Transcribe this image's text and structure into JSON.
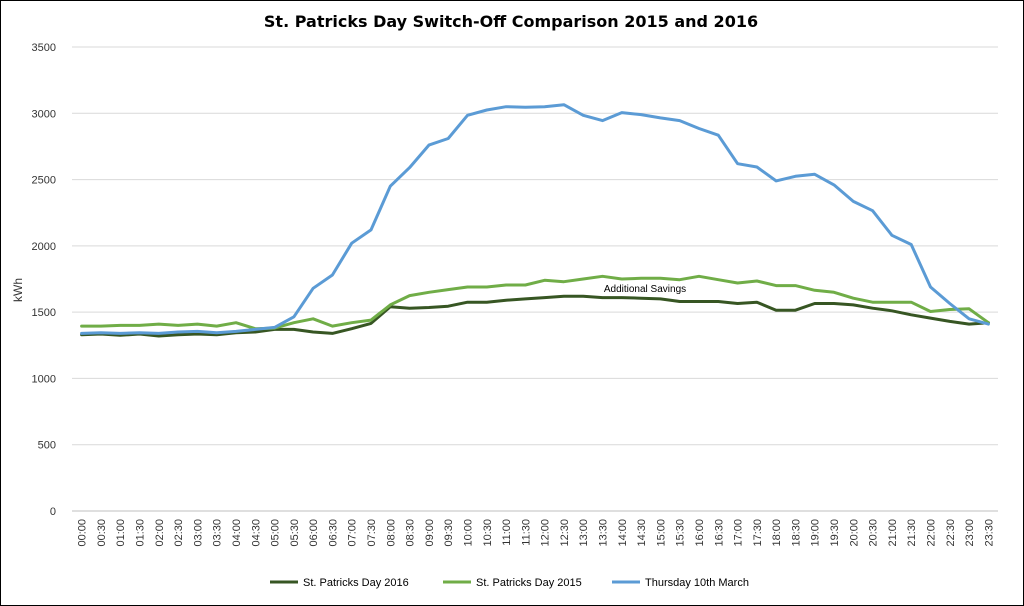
{
  "chart_data": {
    "type": "line",
    "title": "St. Patricks Day Switch-Off Comparison  2015 and 2016",
    "xlabel": "",
    "ylabel": "kWh",
    "ylim": [
      0,
      3500
    ],
    "yticks": [
      0,
      500,
      1000,
      1500,
      2000,
      2500,
      3000,
      3500
    ],
    "grid": true,
    "legend": "bottom",
    "annotation": "Additional Savings",
    "x": [
      "00:00",
      "00:30",
      "01:00",
      "01:30",
      "02:00",
      "02:30",
      "03:00",
      "03:30",
      "04:00",
      "04:30",
      "05:00",
      "05:30",
      "06:00",
      "06:30",
      "07:00",
      "07:30",
      "08:00",
      "08:30",
      "09:00",
      "09:30",
      "10:00",
      "10:30",
      "11:00",
      "11:30",
      "12:00",
      "12:30",
      "13:00",
      "13:30",
      "14:00",
      "14:30",
      "15:00",
      "15:30",
      "16:00",
      "16:30",
      "17:00",
      "17:30",
      "18:00",
      "18:30",
      "19:00",
      "19:30",
      "20:00",
      "20:30",
      "21:00",
      "21:30",
      "22:00",
      "22:30",
      "23:00",
      "23:30"
    ],
    "series": [
      {
        "name": "St. Patricks Day 2016",
        "color": "#375623",
        "values": [
          1330,
          1335,
          1325,
          1335,
          1320,
          1330,
          1335,
          1330,
          1345,
          1350,
          1370,
          1370,
          1350,
          1340,
          1375,
          1415,
          1540,
          1530,
          1535,
          1545,
          1575,
          1575,
          1590,
          1600,
          1610,
          1620,
          1620,
          1610,
          1610,
          1605,
          1600,
          1580,
          1580,
          1580,
          1565,
          1575,
          1515,
          1515,
          1565,
          1565,
          1555,
          1530,
          1510,
          1480,
          1455,
          1430,
          1410,
          1420
        ]
      },
      {
        "name": "St. Patricks Day 2015",
        "color": "#70ad47",
        "values": [
          1395,
          1395,
          1400,
          1400,
          1410,
          1400,
          1410,
          1395,
          1420,
          1375,
          1380,
          1420,
          1450,
          1395,
          1420,
          1440,
          1555,
          1625,
          1650,
          1670,
          1690,
          1690,
          1705,
          1705,
          1740,
          1730,
          1750,
          1770,
          1750,
          1755,
          1755,
          1745,
          1770,
          1745,
          1720,
          1735,
          1700,
          1700,
          1665,
          1650,
          1605,
          1575,
          1575,
          1575,
          1505,
          1520,
          1525,
          1420
        ]
      },
      {
        "name": "Thursday 10th March",
        "color": "#5b9bd5",
        "values": [
          1340,
          1345,
          1340,
          1345,
          1340,
          1350,
          1355,
          1345,
          1355,
          1370,
          1385,
          1465,
          1680,
          1780,
          2020,
          2120,
          2450,
          2590,
          2760,
          2810,
          2985,
          3025,
          3050,
          3045,
          3050,
          3065,
          2985,
          2945,
          3005,
          2990,
          2965,
          2945,
          2885,
          2835,
          2620,
          2595,
          2490,
          2525,
          2540,
          2460,
          2335,
          2265,
          2080,
          2010,
          1690,
          1565,
          1450,
          1410
        ]
      }
    ]
  }
}
